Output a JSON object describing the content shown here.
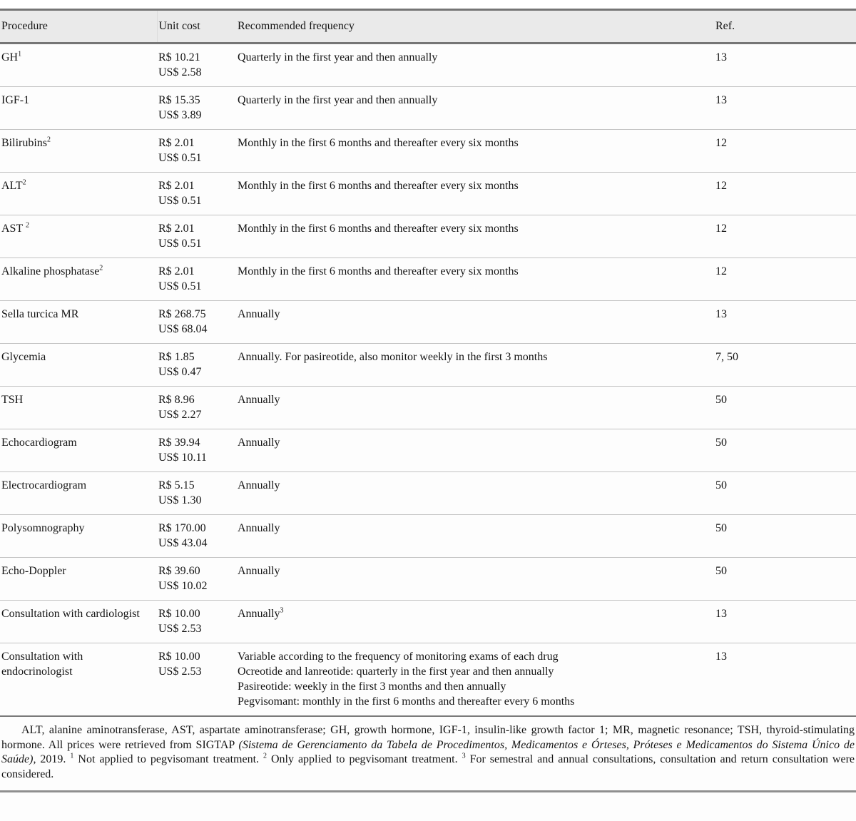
{
  "table": {
    "columns": [
      "Procedure",
      "Unit cost",
      "Recommended frequency",
      "Ref."
    ],
    "rows": [
      {
        "procedure": [
          {
            "t": "GH"
          },
          {
            "t": "1",
            "sup": true
          }
        ],
        "unit_cost": [
          "R$ 10.21",
          "US$ 2.58"
        ],
        "frequency": [
          [
            {
              "t": "Quarterly in the first year and then annually"
            }
          ]
        ],
        "ref": "13"
      },
      {
        "procedure": [
          {
            "t": "IGF-1"
          }
        ],
        "unit_cost": [
          "R$ 15.35",
          "US$ 3.89"
        ],
        "frequency": [
          [
            {
              "t": "Quarterly in the first year and then annually"
            }
          ]
        ],
        "ref": "13"
      },
      {
        "procedure": [
          {
            "t": "Bilirubins"
          },
          {
            "t": "2",
            "sup": true
          }
        ],
        "unit_cost": [
          "R$ 2.01",
          "US$ 0.51"
        ],
        "frequency": [
          [
            {
              "t": "Monthly in the first 6 months and thereafter every six months"
            }
          ]
        ],
        "ref": "12"
      },
      {
        "procedure": [
          {
            "t": "ALT"
          },
          {
            "t": "2",
            "sup": true
          }
        ],
        "unit_cost": [
          "R$ 2.01",
          "US$ 0.51"
        ],
        "frequency": [
          [
            {
              "t": "Monthly in the first 6 months and thereafter every six months"
            }
          ]
        ],
        "ref": "12"
      },
      {
        "procedure": [
          {
            "t": "AST "
          },
          {
            "t": "2",
            "sup": true
          }
        ],
        "unit_cost": [
          "R$ 2.01",
          "US$ 0.51"
        ],
        "frequency": [
          [
            {
              "t": "Monthly in the first 6 months and thereafter every six months"
            }
          ]
        ],
        "ref": "12"
      },
      {
        "procedure": [
          {
            "t": "Alkaline phosphatase"
          },
          {
            "t": "2",
            "sup": true
          }
        ],
        "unit_cost": [
          "R$ 2.01",
          "US$ 0.51"
        ],
        "frequency": [
          [
            {
              "t": "Monthly in the first 6 months and thereafter every six months"
            }
          ]
        ],
        "ref": "12"
      },
      {
        "procedure": [
          {
            "t": "Sella turcica MR"
          }
        ],
        "unit_cost": [
          "R$ 268.75",
          "US$ 68.04"
        ],
        "frequency": [
          [
            {
              "t": "Annually"
            }
          ]
        ],
        "ref": "13"
      },
      {
        "procedure": [
          {
            "t": "Glycemia"
          }
        ],
        "unit_cost": [
          "R$ 1.85",
          "US$ 0.47"
        ],
        "frequency": [
          [
            {
              "t": "Annually. For pasireotide, also monitor weekly in the first 3 months"
            }
          ]
        ],
        "ref": "7, 50"
      },
      {
        "procedure": [
          {
            "t": "TSH"
          }
        ],
        "unit_cost": [
          "R$ 8.96",
          "US$ 2.27"
        ],
        "frequency": [
          [
            {
              "t": "Annually"
            }
          ]
        ],
        "ref": "50"
      },
      {
        "procedure": [
          {
            "t": "Echocardiogram"
          }
        ],
        "unit_cost": [
          "R$ 39.94",
          "US$ 10.11"
        ],
        "frequency": [
          [
            {
              "t": "Annually"
            }
          ]
        ],
        "ref": "50"
      },
      {
        "procedure": [
          {
            "t": "Electrocardiogram"
          }
        ],
        "unit_cost": [
          "R$ 5.15",
          "US$ 1.30"
        ],
        "frequency": [
          [
            {
              "t": "Annually"
            }
          ]
        ],
        "ref": "50"
      },
      {
        "procedure": [
          {
            "t": "Polysomnography"
          }
        ],
        "unit_cost": [
          "R$ 170.00",
          "US$ 43.04"
        ],
        "frequency": [
          [
            {
              "t": "Annually"
            }
          ]
        ],
        "ref": "50"
      },
      {
        "procedure": [
          {
            "t": "Echo-Doppler"
          }
        ],
        "unit_cost": [
          "R$ 39.60",
          "US$ 10.02"
        ],
        "frequency": [
          [
            {
              "t": "Annually"
            }
          ]
        ],
        "ref": "50"
      },
      {
        "procedure": [
          {
            "t": "Consultation with cardiologist"
          }
        ],
        "unit_cost": [
          "R$ 10.00",
          "US$ 2.53"
        ],
        "frequency": [
          [
            {
              "t": "Annually"
            },
            {
              "t": "3",
              "sup": true
            }
          ]
        ],
        "ref": "13"
      },
      {
        "procedure": [
          {
            "t": "Consultation with endocrinologist"
          }
        ],
        "unit_cost": [
          "R$ 10.00",
          "US$ 2.53"
        ],
        "frequency": [
          [
            {
              "t": "Variable according to the frequency of monitoring exams of each drug"
            }
          ],
          [
            {
              "t": "Ocreotide and lanreotide: quarterly in the first year and then annually"
            }
          ],
          [
            {
              "t": "Pasireotide: weekly in the first 3 months and then annually"
            }
          ],
          [
            {
              "t": "Pegvisomant: monthly in the first 6 months and thereafter every 6 months"
            }
          ]
        ],
        "ref": "13"
      }
    ]
  },
  "footnote": {
    "segments": [
      {
        "t": "ALT, alanine aminotransferase, AST, aspartate aminotransferase; GH, growth hormone, IGF-1, insulin-like growth factor 1; MR, magnetic resonance; TSH, thyroid-stimulating hormone. All prices were retrieved from SIGTAP "
      },
      {
        "t": "(Sistema de Gerenciamento da Tabela de Procedimentos, Medicamentos e Órteses, Próteses e Medicamentos do Sistema Único de Saúde)",
        "italic": true
      },
      {
        "t": ", 2019. "
      },
      {
        "t": "1",
        "sup": true
      },
      {
        "t": " Not applied to pegvisomant treatment. "
      },
      {
        "t": "2",
        "sup": true
      },
      {
        "t": " Only applied to pegvisomant treatment. "
      },
      {
        "t": "3",
        "sup": true
      },
      {
        "t": " For semestral and annual consultations, consultation and return consultation were considered."
      }
    ]
  }
}
